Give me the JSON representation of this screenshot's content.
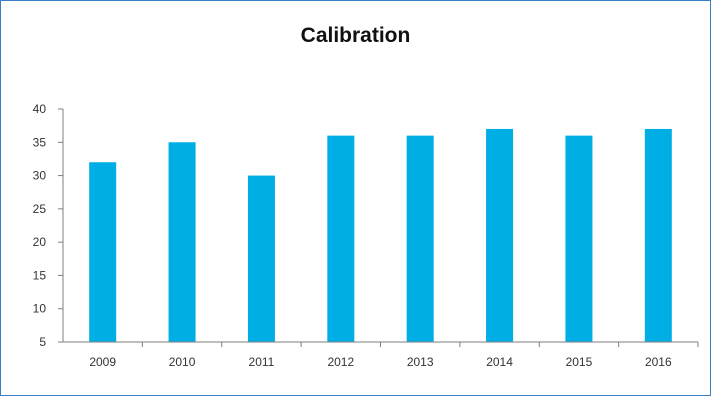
{
  "chart_data": {
    "type": "bar",
    "title": "Calibration",
    "xlabel": "",
    "ylabel": "",
    "categories": [
      "2009",
      "2010",
      "2011",
      "2012",
      "2013",
      "2014",
      "2015",
      "2016"
    ],
    "values": [
      32,
      35,
      30,
      36,
      36,
      37,
      36,
      37
    ],
    "ylim": [
      5,
      40
    ],
    "yticks": [
      5,
      10,
      15,
      20,
      25,
      30,
      35,
      40
    ],
    "grid": false,
    "legend": "none",
    "colors": {
      "bar": "#00aee6",
      "axis": "#7f7f7f",
      "frame": "#3a7fc4"
    }
  }
}
